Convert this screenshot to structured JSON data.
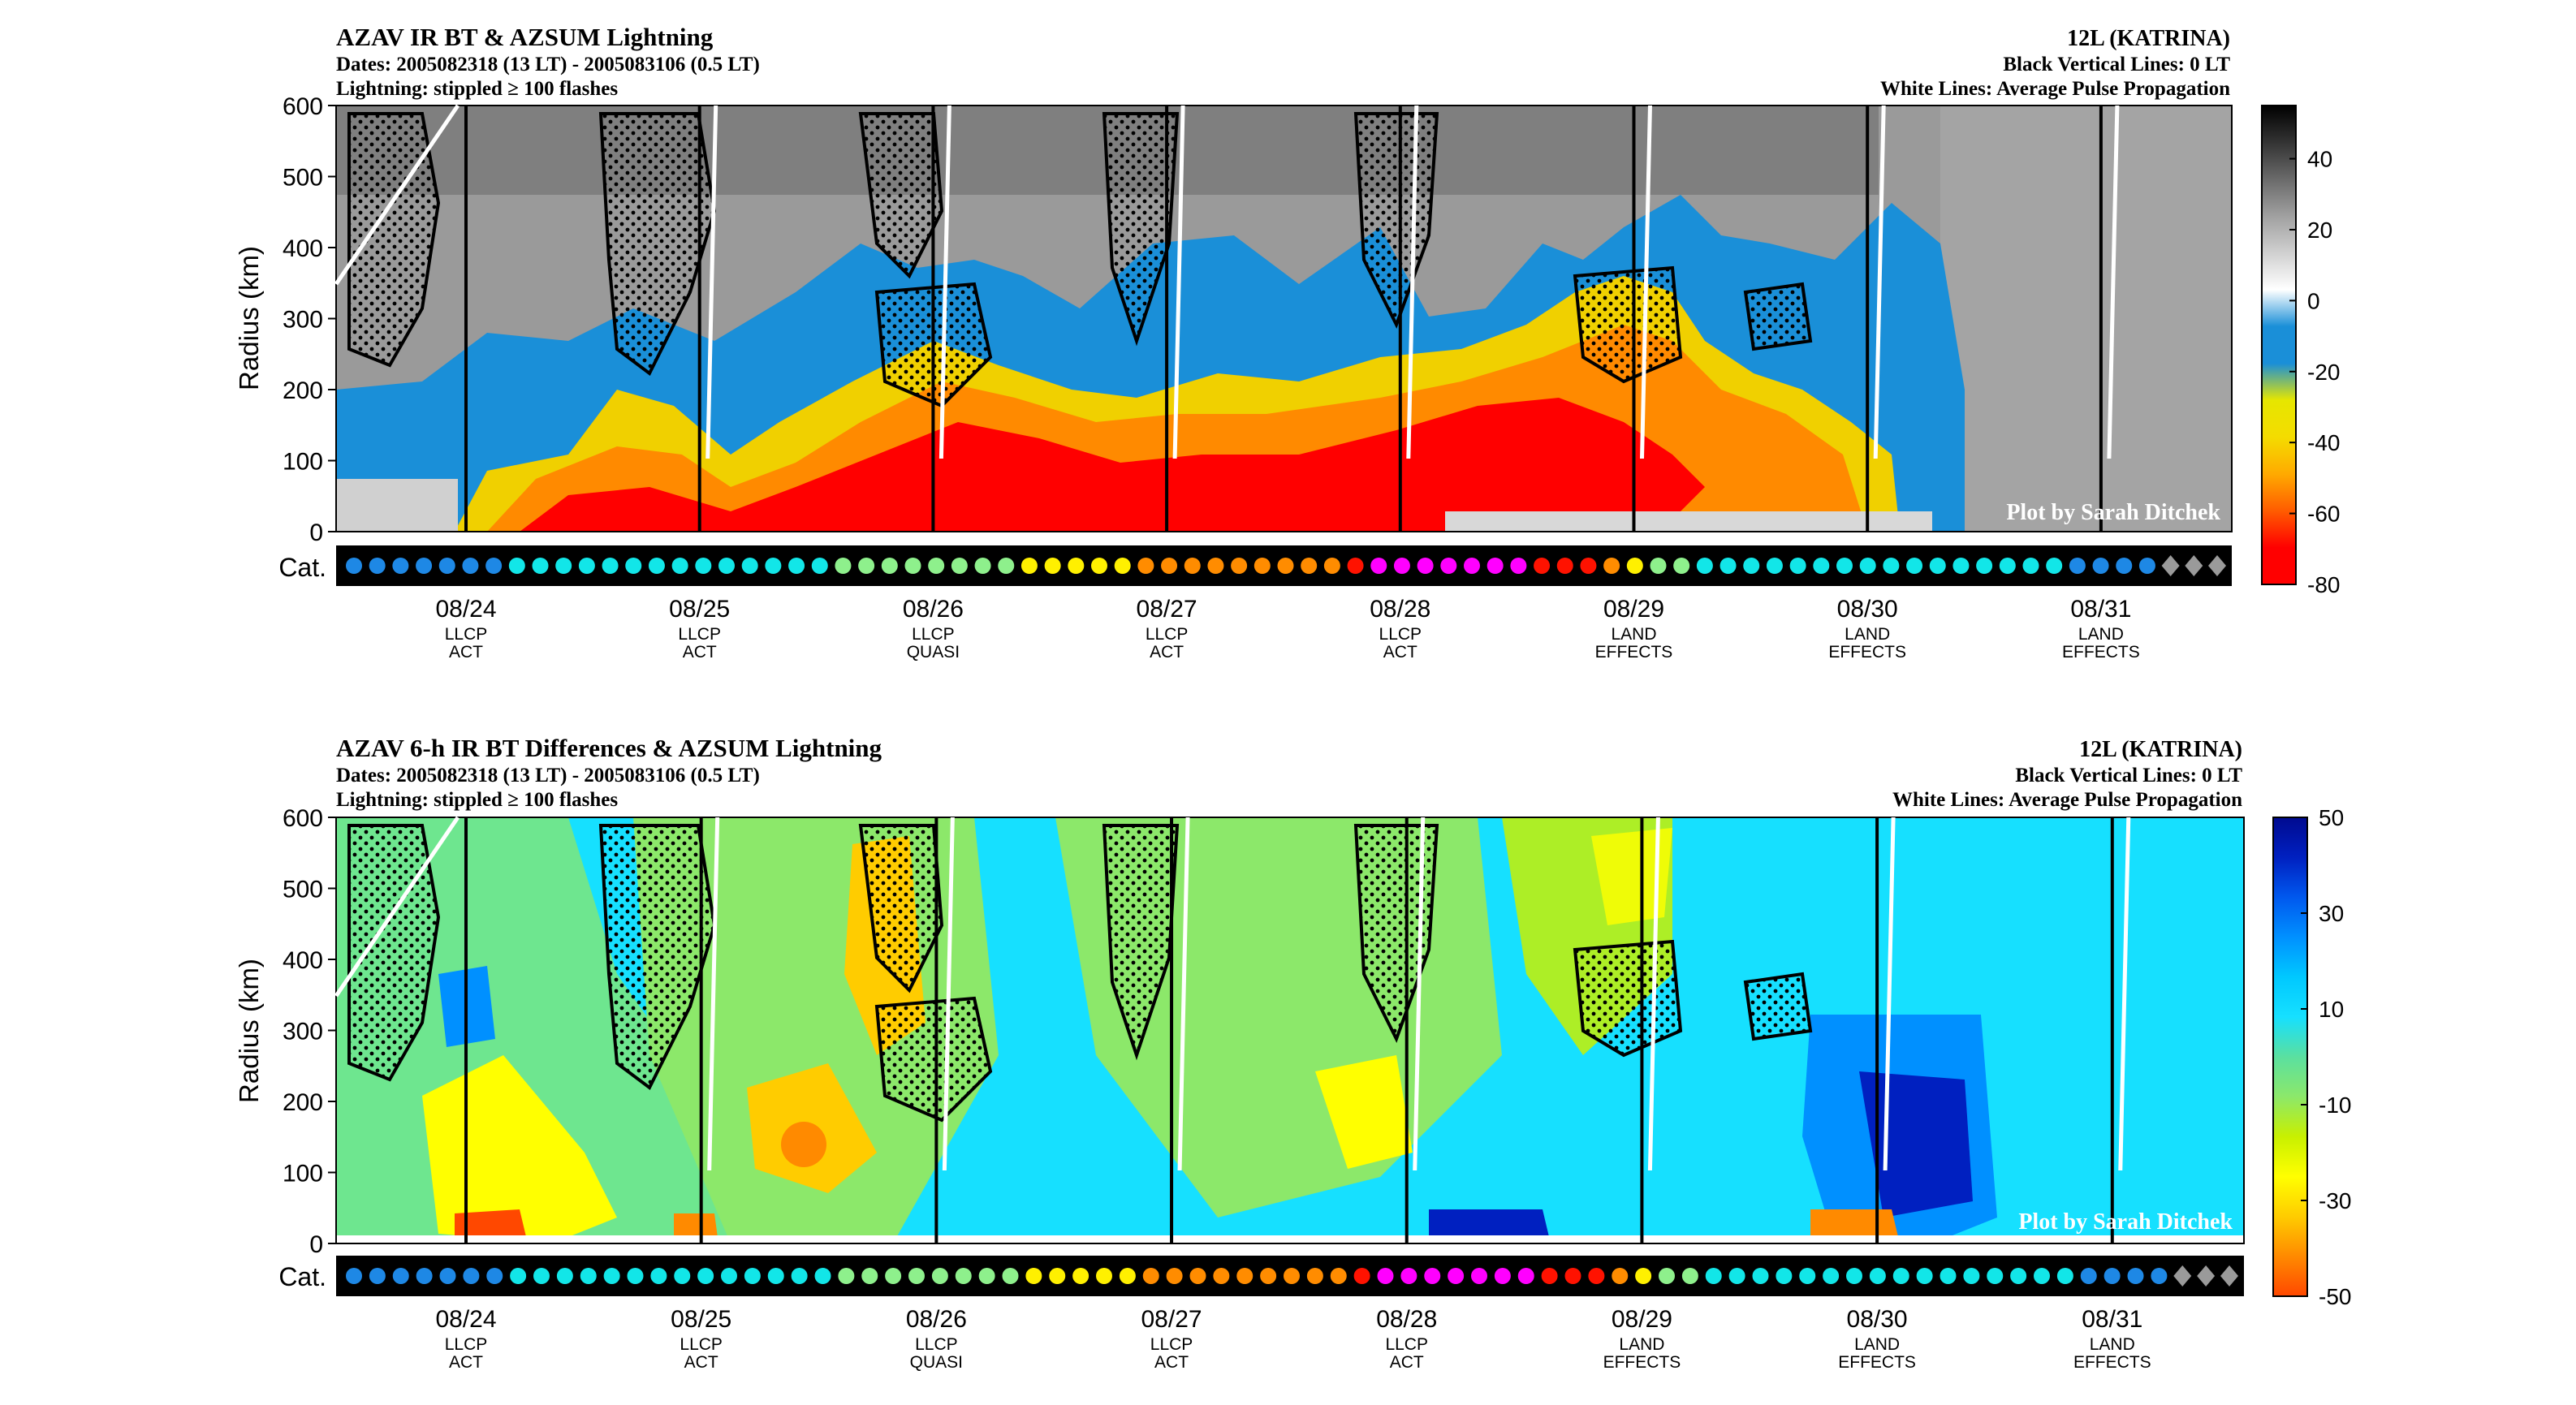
{
  "chart_data": [
    {
      "type": "heatmap",
      "title": "AZAV IR BT & AZSUM Lightning",
      "subtitle_dates": "Dates: 2005082318 (13 LT) - 2005083106 (0.5 LT)",
      "subtitle_lightning": "Lightning: stippled ≥ 100 flashes",
      "storm": "12L (KATRINA)",
      "note_black": "Black Vertical Lines: 0 LT",
      "note_white": "White Lines: Average Pulse Propagation",
      "credit": "Plot by Sarah Ditchek",
      "ylabel": "Radius (km)",
      "yticks": [
        0,
        100,
        200,
        300,
        400,
        500,
        600
      ],
      "ylim": [
        0,
        600
      ],
      "colorbar_ticks": [
        40,
        20,
        0,
        -20,
        -40,
        -60,
        -80
      ],
      "colorbar_range": [
        -80,
        55
      ]
    },
    {
      "type": "heatmap",
      "title": "AZAV 6-h IR BT Differences & AZSUM Lightning",
      "subtitle_dates": "Dates: 2005082318 (13 LT) - 2005083106 (0.5 LT)",
      "subtitle_lightning": "Lightning: stippled ≥ 100 flashes",
      "storm": "12L (KATRINA)",
      "note_black": "Black Vertical Lines: 0 LT",
      "note_white": "White Lines: Average Pulse Propagation",
      "credit": "Plot by Sarah Ditchek",
      "ylabel": "Radius (km)",
      "yticks": [
        0,
        100,
        200,
        300,
        400,
        500,
        600
      ],
      "ylim": [
        0,
        600
      ],
      "colorbar_ticks": [
        50,
        30,
        10,
        -10,
        -30,
        -50
      ],
      "colorbar_range": [
        -50,
        50
      ]
    }
  ],
  "cat_label": "Cat.",
  "dates": [
    {
      "date": "08/24",
      "l1": "LLCP",
      "l2": "ACT"
    },
    {
      "date": "08/25",
      "l1": "LLCP",
      "l2": "ACT"
    },
    {
      "date": "08/26",
      "l1": "LLCP",
      "l2": "QUASI"
    },
    {
      "date": "08/27",
      "l1": "LLCP",
      "l2": "ACT"
    },
    {
      "date": "08/28",
      "l1": "LLCP",
      "l2": "ACT"
    },
    {
      "date": "08/29",
      "l1": "LAND",
      "l2": "EFFECTS"
    },
    {
      "date": "08/30",
      "l1": "LAND",
      "l2": "EFFECTS"
    },
    {
      "date": "08/31",
      "l1": "LAND",
      "l2": "EFFECTS"
    }
  ],
  "cat_sequence": [
    "b",
    "b",
    "b",
    "b",
    "b",
    "b",
    "b",
    "c",
    "c",
    "c",
    "c",
    "c",
    "c",
    "c",
    "c",
    "c",
    "c",
    "c",
    "c",
    "c",
    "c",
    "g",
    "g",
    "g",
    "g",
    "g",
    "g",
    "g",
    "g",
    "y",
    "y",
    "y",
    "y",
    "y",
    "o",
    "o",
    "o",
    "o",
    "o",
    "o",
    "o",
    "o",
    "o",
    "r",
    "m",
    "m",
    "m",
    "m",
    "m",
    "m",
    "m",
    "r",
    "r",
    "r",
    "o",
    "y",
    "g",
    "g",
    "c",
    "c",
    "c",
    "c",
    "c",
    "c",
    "c",
    "c",
    "c",
    "c",
    "c",
    "c",
    "c",
    "c",
    "c",
    "c",
    "b",
    "b",
    "b",
    "b",
    "d",
    "d",
    "d"
  ],
  "cat_colors": {
    "b": "#1e88e5",
    "c": "#12e6e8",
    "g": "#8ef08c",
    "y": "#fff000",
    "o": "#ff8c00",
    "r": "#ff1200",
    "m": "#ff00ff",
    "d": "#9a9a9a"
  },
  "colormap_top": [
    "#ff0000",
    "#ff0000",
    "#ff5c00",
    "#ffaa00",
    "#f4dc00",
    "#e6e600",
    "#1a8fd8",
    "#1a8fd8",
    "#ffffff",
    "#d0d0d0",
    "#a0a0a0",
    "#6a6a6a",
    "#333333",
    "#000000"
  ],
  "colormap_bottom": [
    "#ff4800",
    "#ff8a00",
    "#ffcc00",
    "#ffff00",
    "#c8f000",
    "#8ce86a",
    "#5ae0a0",
    "#16e0ff",
    "#00c8ff",
    "#0090ff",
    "#0058ee",
    "#0020c0",
    "#000a90"
  ]
}
